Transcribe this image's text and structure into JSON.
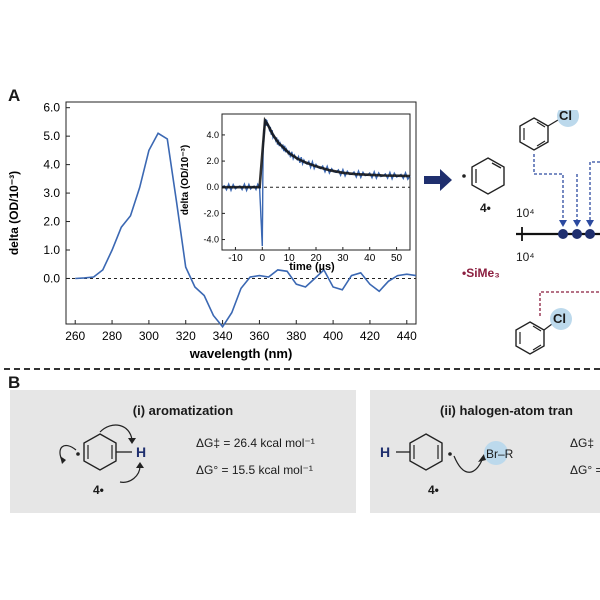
{
  "panelA": {
    "label": "A",
    "chart_data": {
      "type": "line",
      "title": "",
      "xlabel": "wavelength (nm)",
      "ylabel": "delta (OD/10⁻³)",
      "xlim": [
        255,
        445
      ],
      "ylim": [
        -1.6,
        6.2
      ],
      "xticks": [
        260,
        280,
        300,
        320,
        340,
        360,
        380,
        400,
        420,
        440
      ],
      "yticks": [
        0.0,
        1.0,
        2.0,
        3.0,
        4.0,
        5.0,
        6.0
      ],
      "yticklabels": [
        "0.0",
        "1.0",
        "2.0",
        "3.0",
        "4.0",
        "5.0",
        "6.0"
      ],
      "series": [
        {
          "color": "#3b68b3",
          "x": [
            260,
            265,
            270,
            275,
            280,
            285,
            290,
            295,
            300,
            305,
            310,
            315,
            320,
            325,
            330,
            335,
            340,
            345,
            350,
            355,
            360,
            365,
            370,
            375,
            380,
            385,
            390,
            395,
            400,
            405,
            410,
            415,
            420,
            425,
            430,
            435,
            440,
            445
          ],
          "y": [
            0.0,
            0.02,
            0.05,
            0.3,
            1.0,
            1.8,
            2.2,
            3.2,
            4.5,
            5.1,
            4.9,
            2.7,
            0.4,
            -0.3,
            -0.6,
            -1.3,
            -1.7,
            -1.2,
            -0.35,
            0.05,
            0.1,
            0.05,
            0.3,
            0.25,
            -0.2,
            -0.3,
            0.0,
            0.3,
            -0.3,
            -0.4,
            0.1,
            0.2,
            -0.2,
            -0.45,
            -0.1,
            0.1,
            0.15,
            0.1
          ]
        }
      ],
      "baseline": 0.0,
      "inset": {
        "type": "line",
        "xlabel": "time (µs)",
        "ylabel": "delta (OD/10⁻³)",
        "xlim": [
          -15,
          55
        ],
        "ylim": [
          -4.8,
          5.6
        ],
        "xticks": [
          -10,
          0,
          10,
          20,
          30,
          40,
          50
        ],
        "yticks": [
          -4.0,
          -2.0,
          0.0,
          2.0,
          4.0
        ],
        "yticklabels": [
          "-4.0",
          "-2.0",
          "0.0",
          "2.0",
          "4.0"
        ],
        "series": [
          {
            "color": "#3b68b3",
            "x": [
              -15,
              -10,
              -5,
              -1,
              0,
              0.3,
              1,
              2,
              4,
              6,
              8,
              10,
              13,
              16,
              20,
              25,
              30,
              35,
              40,
              45,
              50,
              55
            ],
            "y": [
              0.0,
              0.0,
              0.0,
              0.0,
              -4.5,
              3.0,
              5.1,
              4.8,
              4.0,
              3.4,
              3.0,
              2.6,
              2.2,
              1.9,
              1.6,
              1.3,
              1.1,
              1.0,
              0.95,
              0.9,
              0.88,
              0.85
            ]
          }
        ],
        "fit_color": "#111111",
        "baseline": 0.0
      }
    },
    "species_label": "4•",
    "numbers": [
      "10⁴",
      "10⁴"
    ],
    "reagent": "•SiMe₃",
    "cl_label": "Cl"
  },
  "panelB": {
    "label": "B",
    "box1": {
      "title": "(i) aromatization",
      "dg_act": "ΔG‡ = 26.4 kcal mol⁻¹",
      "dg_std": "ΔG° = 15.5 kcal mol⁻¹",
      "h_label": "H",
      "species": "4•"
    },
    "box2": {
      "title": "(ii) halogen-atom tran",
      "dg_act": "ΔG‡",
      "dg_std": "ΔG° =",
      "h_label": "H",
      "species": "4•",
      "brr": "Br–R"
    }
  },
  "colors": {
    "trace": "#3b68b3",
    "arrow_navy": "#1f2f6e",
    "dashed_blue": "#2c4aa0",
    "maroon": "#8b1e3f",
    "cl_circle": "#bcd9ec",
    "box_gray": "#e6e6e6"
  }
}
